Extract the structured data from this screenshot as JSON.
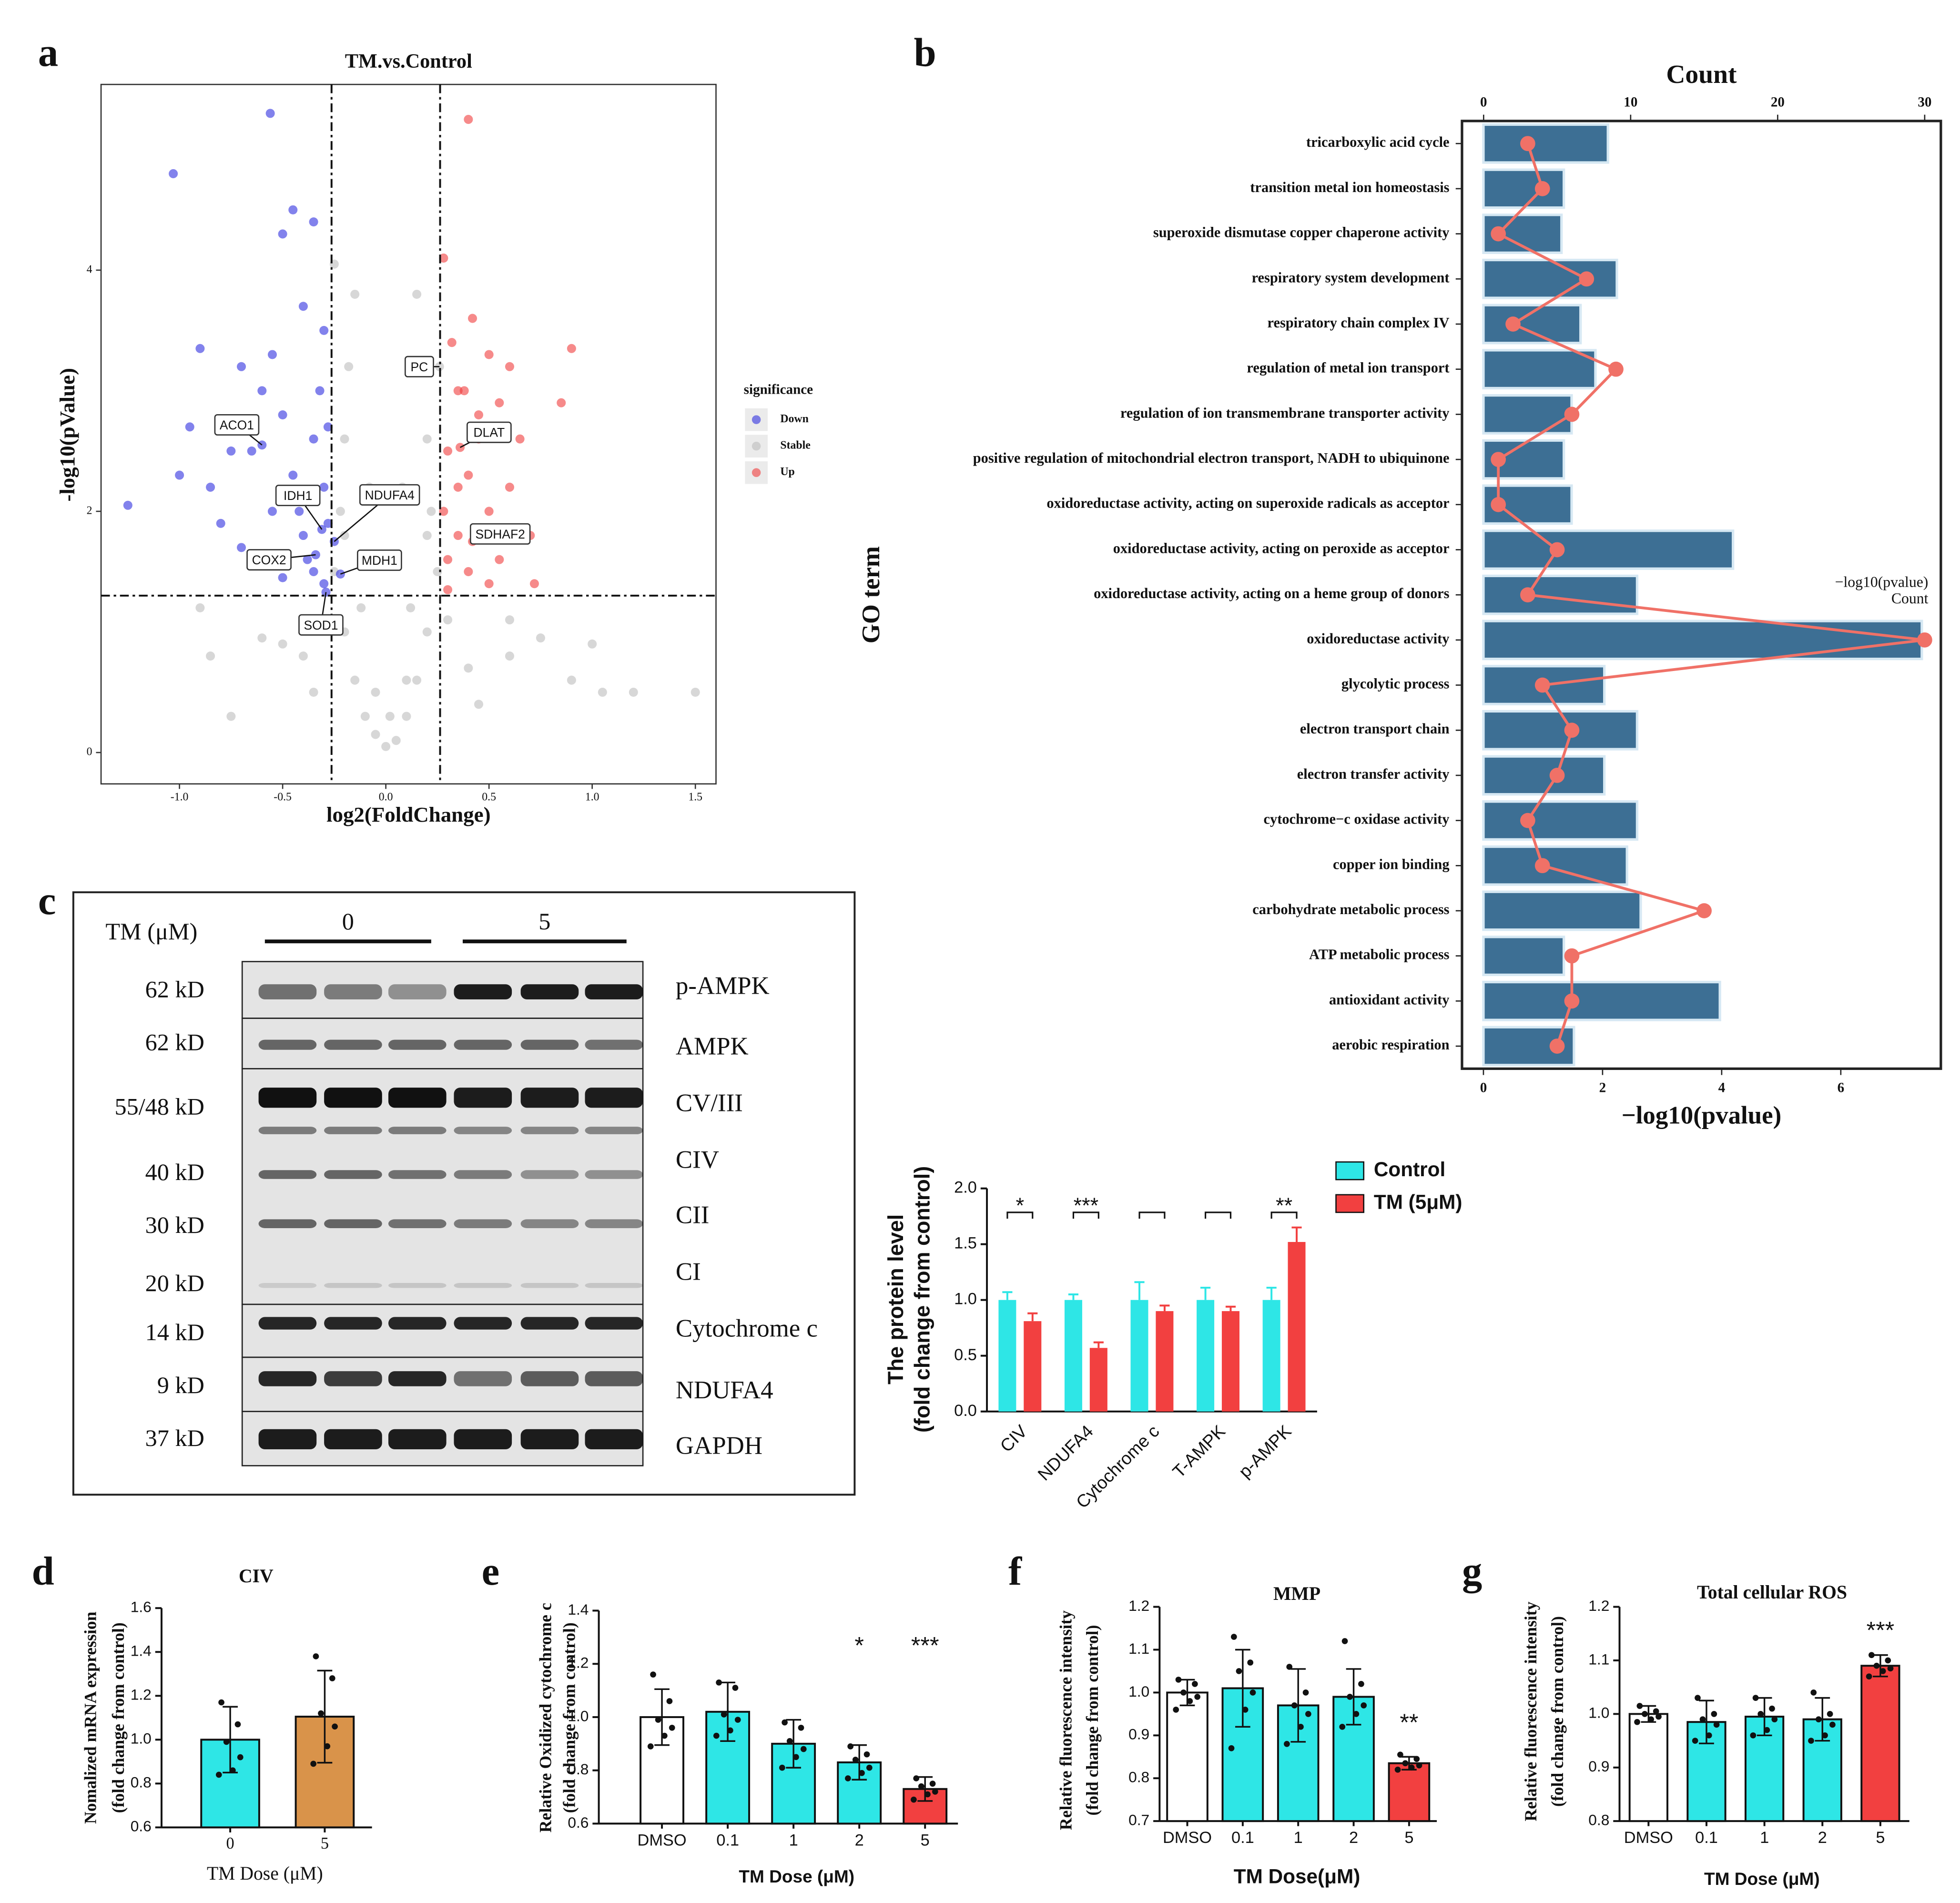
{
  "panel_labels": [
    "a",
    "b",
    "c",
    "d",
    "e",
    "f",
    "g"
  ],
  "blot": {
    "dose_label": "TM (μM)",
    "groups": [
      "0",
      "5"
    ],
    "rows": [
      {
        "kd": "62 kD",
        "protein": "p-AMPK"
      },
      {
        "kd": "62 kD",
        "protein": "AMPK"
      },
      {
        "kd": "55/48 kD",
        "protein": "CV/III"
      },
      {
        "kd": "40 kD",
        "protein": "CIV"
      },
      {
        "kd": "30 kD",
        "protein": "CII"
      },
      {
        "kd": "20 kD",
        "protein": "CI"
      },
      {
        "kd": "14 kD",
        "protein": "Cytochrome c"
      },
      {
        "kd": "9 kD",
        "protein": "NDUFA4"
      },
      {
        "kd": "37 kD",
        "protein": "GAPDH"
      }
    ]
  },
  "chart_data": [
    {
      "type": "scatter",
      "title": "TM.vs.Control",
      "xlabel": "log2(FoldChange)",
      "ylabel": "-log10(pValue)",
      "xlim": [
        -1.38,
        1.6
      ],
      "ylim": [
        -0.26,
        5.54
      ],
      "xticks": [
        {
          "value": -1,
          "label": "-1.0"
        },
        -0.5,
        {
          "value": 0,
          "label": "0.0"
        },
        0.5,
        {
          "value": 1,
          "label": "1.0"
        },
        1.5
      ],
      "yticks": [
        0,
        2,
        4
      ],
      "thresholds": {
        "x": [
          -0.263,
          0.263
        ],
        "y": 1.301
      },
      "legend_title": "significance",
      "series": [
        {
          "name": "Down",
          "color": "#2f2fe0",
          "x": [
            -0.56,
            -1.03,
            -1.25,
            -0.95,
            -0.85,
            -0.8,
            -0.7,
            -0.6,
            -0.9,
            -0.5,
            -0.45,
            -0.35,
            -0.4,
            -0.3,
            -0.55,
            -0.65,
            -0.5,
            -0.45,
            -0.35,
            -0.3,
            -0.4,
            -0.35,
            -0.3,
            -0.6,
            -0.7,
            -0.5,
            -0.28,
            -0.32,
            -0.42,
            -0.38,
            -0.55,
            -0.28,
            -1.0,
            -0.75,
            -0.6,
            -0.31,
            -0.25,
            -0.34,
            -0.22,
            -0.29
          ],
          "y": [
            5.3,
            4.8,
            2.05,
            2.7,
            2.2,
            1.9,
            3.2,
            3.0,
            3.35,
            4.3,
            4.5,
            4.4,
            3.7,
            3.5,
            3.3,
            2.5,
            2.8,
            2.3,
            2.6,
            2.2,
            1.8,
            1.5,
            1.4,
            1.6,
            1.7,
            1.45,
            1.9,
            3.0,
            2.0,
            1.6,
            2.0,
            2.7,
            2.3,
            2.5,
            2.55,
            1.85,
            1.75,
            1.64,
            1.48,
            1.33
          ]
        },
        {
          "name": "Stable",
          "color": "#bdbdbd",
          "x": [
            0,
            0.05,
            -0.05,
            0.1,
            -0.1,
            0.15,
            -0.15,
            0.2,
            -0.2,
            0.25,
            -0.25,
            0.22,
            -0.22,
            0.2,
            -0.2,
            0.18,
            -0.18,
            0.15,
            -0.15,
            -0.25,
            0.1,
            -0.05,
            0.02,
            0.12,
            -0.12,
            0.2,
            -0.2,
            0.08,
            -0.08,
            0.6,
            0.75,
            0.9,
            1.0,
            1.2,
            1.5,
            -0.75,
            -0.85,
            -0.5,
            -0.6,
            0.45,
            0.4,
            -0.4,
            -0.35,
            0.3,
            -0.3,
            0.6,
            1.05,
            -0.9,
            0.26
          ],
          "y": [
            0.05,
            0.1,
            0.15,
            0.3,
            0.3,
            0.6,
            0.6,
            1.0,
            1.0,
            1.5,
            1.5,
            2.0,
            2.0,
            2.6,
            2.6,
            3.2,
            3.2,
            3.8,
            3.8,
            4.05,
            0.6,
            0.5,
            0.3,
            1.2,
            1.2,
            1.8,
            1.8,
            2.2,
            2.2,
            0.8,
            0.95,
            0.6,
            0.9,
            0.5,
            0.5,
            0.3,
            0.8,
            0.9,
            0.95,
            0.4,
            0.7,
            0.8,
            0.5,
            1.1,
            1.1,
            1.1,
            0.5,
            1.2,
            3.2
          ]
        },
        {
          "name": "Up",
          "color": "#f03c3c",
          "x": [
            0.4,
            0.28,
            0.32,
            0.9,
            0.6,
            0.55,
            0.5,
            0.85,
            0.35,
            0.45,
            0.4,
            0.3,
            0.28,
            0.35,
            0.5,
            0.6,
            0.7,
            0.72,
            0.4,
            0.3,
            0.55,
            0.45,
            0.35,
            0.65,
            0.3,
            0.5,
            0.42,
            0.38,
            0.36,
            0.42
          ],
          "y": [
            5.25,
            4.1,
            3.4,
            3.35,
            3.2,
            2.9,
            3.3,
            2.9,
            3.0,
            2.6,
            2.3,
            2.5,
            2.0,
            1.8,
            2.0,
            2.2,
            1.8,
            1.4,
            1.5,
            1.6,
            1.6,
            2.8,
            2.2,
            2.6,
            1.35,
            1.4,
            3.6,
            3.0,
            2.53,
            1.75
          ]
        }
      ],
      "annotations": [
        {
          "text": "ACO1",
          "x": -0.6,
          "y": 2.55
        },
        {
          "text": "IDH1",
          "x": -0.31,
          "y": 1.85
        },
        {
          "text": "NDUFA4",
          "x": -0.25,
          "y": 1.75
        },
        {
          "text": "COX2",
          "x": -0.34,
          "y": 1.64
        },
        {
          "text": "MDH1",
          "x": -0.22,
          "y": 1.48
        },
        {
          "text": "SOD1",
          "x": -0.29,
          "y": 1.33
        },
        {
          "text": "PC",
          "x": 0.26,
          "y": 3.2
        },
        {
          "text": "DLAT",
          "x": 0.36,
          "y": 2.53
        },
        {
          "text": "SDHAF2",
          "x": 0.42,
          "y": 1.75
        }
      ]
    },
    {
      "type": "bar_line",
      "ylabel": "GO term",
      "xlabel": "−log10(pvalue)",
      "x2label": "Count",
      "categories": [
        "tricarboxylic acid cycle",
        "transition metal ion homeostasis",
        "superoxide dismutase copper chaperone activity",
        "respiratory system development",
        "respiratory chain complex IV",
        "regulation of metal ion transport",
        "regulation of ion transmembrane transporter activity",
        "positive regulation of mitochondrial electron transport, NADH to ubiquinone",
        "oxidoreductase activity, acting on superoxide radicals as acceptor",
        "oxidoreductase activity, acting on peroxide as acceptor",
        "oxidoreductase activity, acting on a heme group of donors",
        "oxidoreductase activity",
        "glycolytic process",
        "electron transport chain",
        "electron transfer activity",
        "cytochrome−c oxidase activity",
        "copper ion binding",
        "carbohydrate metabolic process",
        "ATP metabolic process",
        "antioxidant activity",
        "aerobic respiration"
      ],
      "series": [
        {
          "name": "−log10(pvalue)",
          "color": "#3d6f94",
          "values": [
            2.09,
            1.35,
            1.31,
            2.24,
            1.63,
            1.88,
            1.48,
            1.35,
            1.48,
            4.19,
            2.58,
            7.36,
            2.03,
            2.58,
            2.03,
            2.58,
            2.41,
            2.64,
            1.35,
            3.97,
            1.52
          ]
        },
        {
          "name": "Count",
          "color": "#f07167",
          "axis": "x2",
          "values": [
            3,
            4,
            1,
            7,
            2,
            9,
            6,
            1,
            1,
            5,
            3,
            30,
            4,
            6,
            5,
            3,
            4,
            15,
            6,
            6,
            5
          ]
        }
      ],
      "xlim": [
        -0.36,
        7.68
      ],
      "xticks": [
        0,
        2,
        4,
        6
      ],
      "x2lim": [
        -1.47,
        31.1
      ],
      "x2ticks": [
        0,
        10,
        20,
        30
      ]
    },
    {
      "type": "grouped_bar",
      "ylabel": [
        "The protein level",
        "(fold change from control)"
      ],
      "categories": [
        "CIV",
        "NDUFA4",
        "Cytochrome c",
        "T-AMPK",
        "p-AMPK"
      ],
      "series": [
        {
          "name": "Control",
          "color": "#2ee6e6",
          "values": [
            1,
            1,
            1,
            1,
            1
          ],
          "errors": [
            0.07,
            0.05,
            0.16,
            0.11,
            0.11
          ]
        },
        {
          "name": "TM (5μM)",
          "color": "#f24040",
          "values": [
            0.81,
            0.57,
            0.9,
            0.9,
            1.52
          ],
          "errors": [
            0.07,
            0.05,
            0.05,
            0.04,
            0.13
          ]
        }
      ],
      "significance": [
        "*",
        "***",
        null,
        null,
        "**"
      ],
      "ylim": [
        0,
        2
      ],
      "yticks": [
        {
          "value": 0,
          "label": "0.0"
        },
        0.5,
        {
          "value": 1,
          "label": "1.0"
        },
        1.5,
        {
          "value": 2,
          "label": "2.0"
        }
      ]
    },
    {
      "type": "bar",
      "title": "CIV",
      "xlabel": "TM Dose (μM)",
      "ylabel": [
        "Nomalized mRNA expression",
        "(fold change from control)"
      ],
      "categories": [
        "0",
        "5"
      ],
      "values": [
        1.0,
        1.105
      ],
      "errors": [
        0.15,
        0.21
      ],
      "colors": [
        "#2ee6e6",
        "#d9934a"
      ],
      "points": [
        [
          1.17,
          1.07,
          0.99,
          0.92,
          0.86,
          0.84
        ],
        [
          1.38,
          1.28,
          1.12,
          1.06,
          0.97,
          0.89
        ]
      ],
      "ylim": [
        0.6,
        1.6
      ],
      "yticks": [
        0.6,
        0.8,
        {
          "value": 1,
          "label": "1.0"
        },
        1.2,
        1.4,
        1.6
      ]
    },
    {
      "type": "bar",
      "xlabel": "TM Dose (μM)",
      "ylabel": [
        "Relative Oxidized cytochrome c",
        "(fold change from control)"
      ],
      "categories": [
        "DMSO",
        "0.1",
        "1",
        "2",
        "5"
      ],
      "values": [
        1.0,
        1.02,
        0.9,
        0.83,
        0.73
      ],
      "errors": [
        0.105,
        0.11,
        0.09,
        0.065,
        0.045
      ],
      "colors": [
        "#ffffff",
        "#2ee6e6",
        "#2ee6e6",
        "#2ee6e6",
        "#f24040"
      ],
      "significance": [
        null,
        null,
        null,
        "*",
        "***"
      ],
      "points": [
        [
          1.16,
          1.06,
          0.99,
          0.96,
          0.93,
          0.89
        ],
        [
          1.13,
          1.11,
          1.01,
          0.99,
          0.95,
          0.93
        ],
        [
          0.98,
          0.96,
          0.91,
          0.88,
          0.85,
          0.81
        ],
        [
          0.89,
          0.86,
          0.84,
          0.81,
          0.79,
          0.77
        ],
        [
          0.77,
          0.75,
          0.74,
          0.72,
          0.71,
          0.69
        ]
      ],
      "ylim": [
        0.6,
        1.4
      ],
      "yticks": [
        0.6,
        0.8,
        {
          "value": 1,
          "label": "1.0"
        },
        1.2,
        1.4
      ]
    },
    {
      "type": "bar",
      "title": "MMP",
      "xlabel": "TM Dose(μM)",
      "ylabel": [
        "Relative fluorescence intensity",
        "(fold change from control)"
      ],
      "categories": [
        "DMSO",
        "0.1",
        "1",
        "2",
        "5"
      ],
      "values": [
        1.0,
        1.01,
        0.97,
        0.99,
        0.835
      ],
      "errors": [
        0.03,
        0.09,
        0.085,
        0.065,
        0.015
      ],
      "colors": [
        "#ffffff",
        "#2ee6e6",
        "#2ee6e6",
        "#2ee6e6",
        "#f24040"
      ],
      "significance": [
        null,
        null,
        null,
        null,
        "**"
      ],
      "points": [
        [
          1.03,
          1.02,
          1.0,
          0.99,
          0.98,
          0.96
        ],
        [
          1.13,
          1.07,
          1.05,
          1.0,
          0.96,
          0.87
        ],
        [
          1.06,
          1.0,
          0.97,
          0.95,
          0.92,
          0.88
        ],
        [
          1.12,
          1.02,
          0.99,
          0.97,
          0.95,
          0.92
        ],
        [
          0.855,
          0.845,
          0.835,
          0.83,
          0.825,
          0.82
        ]
      ],
      "ylim": [
        0.7,
        1.2
      ],
      "yticks": [
        0.7,
        0.8,
        0.9,
        {
          "value": 1,
          "label": "1.0"
        },
        1.1,
        1.2
      ]
    },
    {
      "type": "bar",
      "title": "Total cellular ROS",
      "xlabel": "TM Dose (μM)",
      "ylabel": [
        "Relative fluorescence intensity",
        "(fold change from control)"
      ],
      "categories": [
        "DMSO",
        "0.1",
        "1",
        "2",
        "5"
      ],
      "values": [
        1.0,
        0.985,
        0.995,
        0.99,
        1.09
      ],
      "errors": [
        0.015,
        0.04,
        0.035,
        0.04,
        0.02
      ],
      "colors": [
        "#ffffff",
        "#2ee6e6",
        "#2ee6e6",
        "#2ee6e6",
        "#f24040"
      ],
      "significance": [
        null,
        null,
        null,
        null,
        "***"
      ],
      "points": [
        [
          1.015,
          1.005,
          1.0,
          0.995,
          0.99,
          0.985
        ],
        [
          1.03,
          1.0,
          0.99,
          0.98,
          0.96,
          0.95
        ],
        [
          1.03,
          1.01,
          1.0,
          0.99,
          0.97,
          0.96
        ],
        [
          1.04,
          1.0,
          0.99,
          0.98,
          0.96,
          0.95
        ],
        [
          1.11,
          1.1,
          1.09,
          1.085,
          1.08,
          1.07
        ]
      ],
      "ylim": [
        0.8,
        1.2
      ],
      "yticks": [
        0.8,
        0.9,
        {
          "value": 1,
          "label": "1.0"
        },
        1.1,
        1.2
      ]
    }
  ]
}
